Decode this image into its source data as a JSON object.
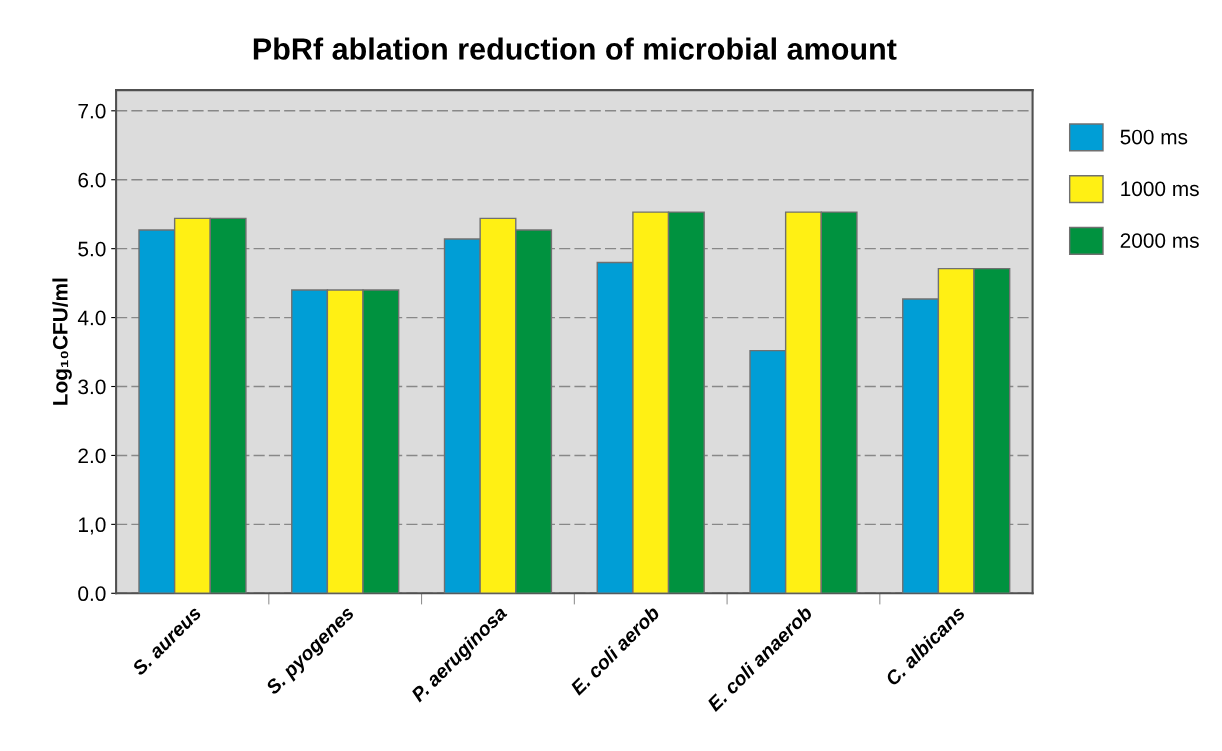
{
  "chart_data": {
    "type": "bar",
    "title": "PbRf ablation reduction of microbial amount",
    "ylabel": "Log₁₀CFU/ml",
    "categories": [
      "S. aureus",
      "S. pyogenes",
      "P. aeruginosa",
      "E. coli aerob",
      "E. coli anaerob",
      "C. albicans"
    ],
    "series": [
      {
        "name": "500 ms",
        "color": "#009ed6",
        "values": [
          5.27,
          4.4,
          5.14,
          4.8,
          3.52,
          4.27
        ]
      },
      {
        "name": "1000 ms",
        "color": "#fff014",
        "values": [
          5.44,
          4.4,
          5.44,
          5.53,
          5.53,
          4.71
        ]
      },
      {
        "name": "2000 ms",
        "color": "#00923f",
        "values": [
          5.44,
          4.4,
          5.27,
          5.53,
          5.53,
          4.71
        ]
      }
    ],
    "ylim": [
      0,
      7.3
    ],
    "yticks": [
      {
        "value": 0,
        "label": "0.0"
      },
      {
        "value": 1,
        "label": "1,0"
      },
      {
        "value": 2,
        "label": "2.0"
      },
      {
        "value": 3,
        "label": "3.0"
      },
      {
        "value": 4,
        "label": "4.0"
      },
      {
        "value": 5,
        "label": "5.0"
      },
      {
        "value": 6,
        "label": "6.0"
      },
      {
        "value": 7,
        "label": "7.0"
      }
    ],
    "grid": "y",
    "legend": "right"
  }
}
